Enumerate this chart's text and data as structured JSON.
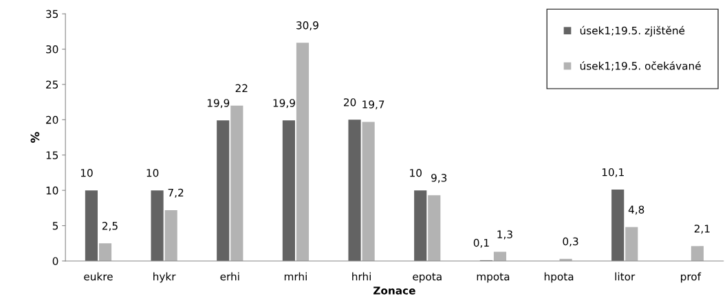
{
  "chart_data": {
    "type": "bar",
    "xlabel": "Zonace",
    "ylabel": "%",
    "categories": [
      "eukre",
      "hykr",
      "erhi",
      "mrhi",
      "hrhi",
      "epota",
      "mpota",
      "hpota",
      "litor",
      "prof"
    ],
    "series": [
      {
        "name": "úsek1;19.5. zjištěné",
        "color": "#636363",
        "values": [
          10,
          10,
          19.9,
          19.9,
          20,
          10,
          0.1,
          null,
          10.1,
          null
        ],
        "value_labels": [
          "10",
          "10",
          "19,9",
          "19,9",
          "20",
          "10",
          "0,1",
          null,
          "10,1",
          null
        ]
      },
      {
        "name": "úsek1;19.5. očekávané",
        "color": "#b3b3b3",
        "values": [
          2.5,
          7.2,
          22,
          30.9,
          19.7,
          9.3,
          1.3,
          0.3,
          4.8,
          2.1
        ],
        "value_labels": [
          "2,5",
          "7,2",
          "22",
          "30,9",
          "19,7",
          "9,3",
          "1,3",
          "0,3",
          "4,8",
          "2,1"
        ]
      }
    ],
    "ylim": [
      0,
      35
    ],
    "yticks": [
      0,
      5,
      10,
      15,
      20,
      25,
      30,
      35
    ],
    "grid": false,
    "legend": "top right"
  }
}
